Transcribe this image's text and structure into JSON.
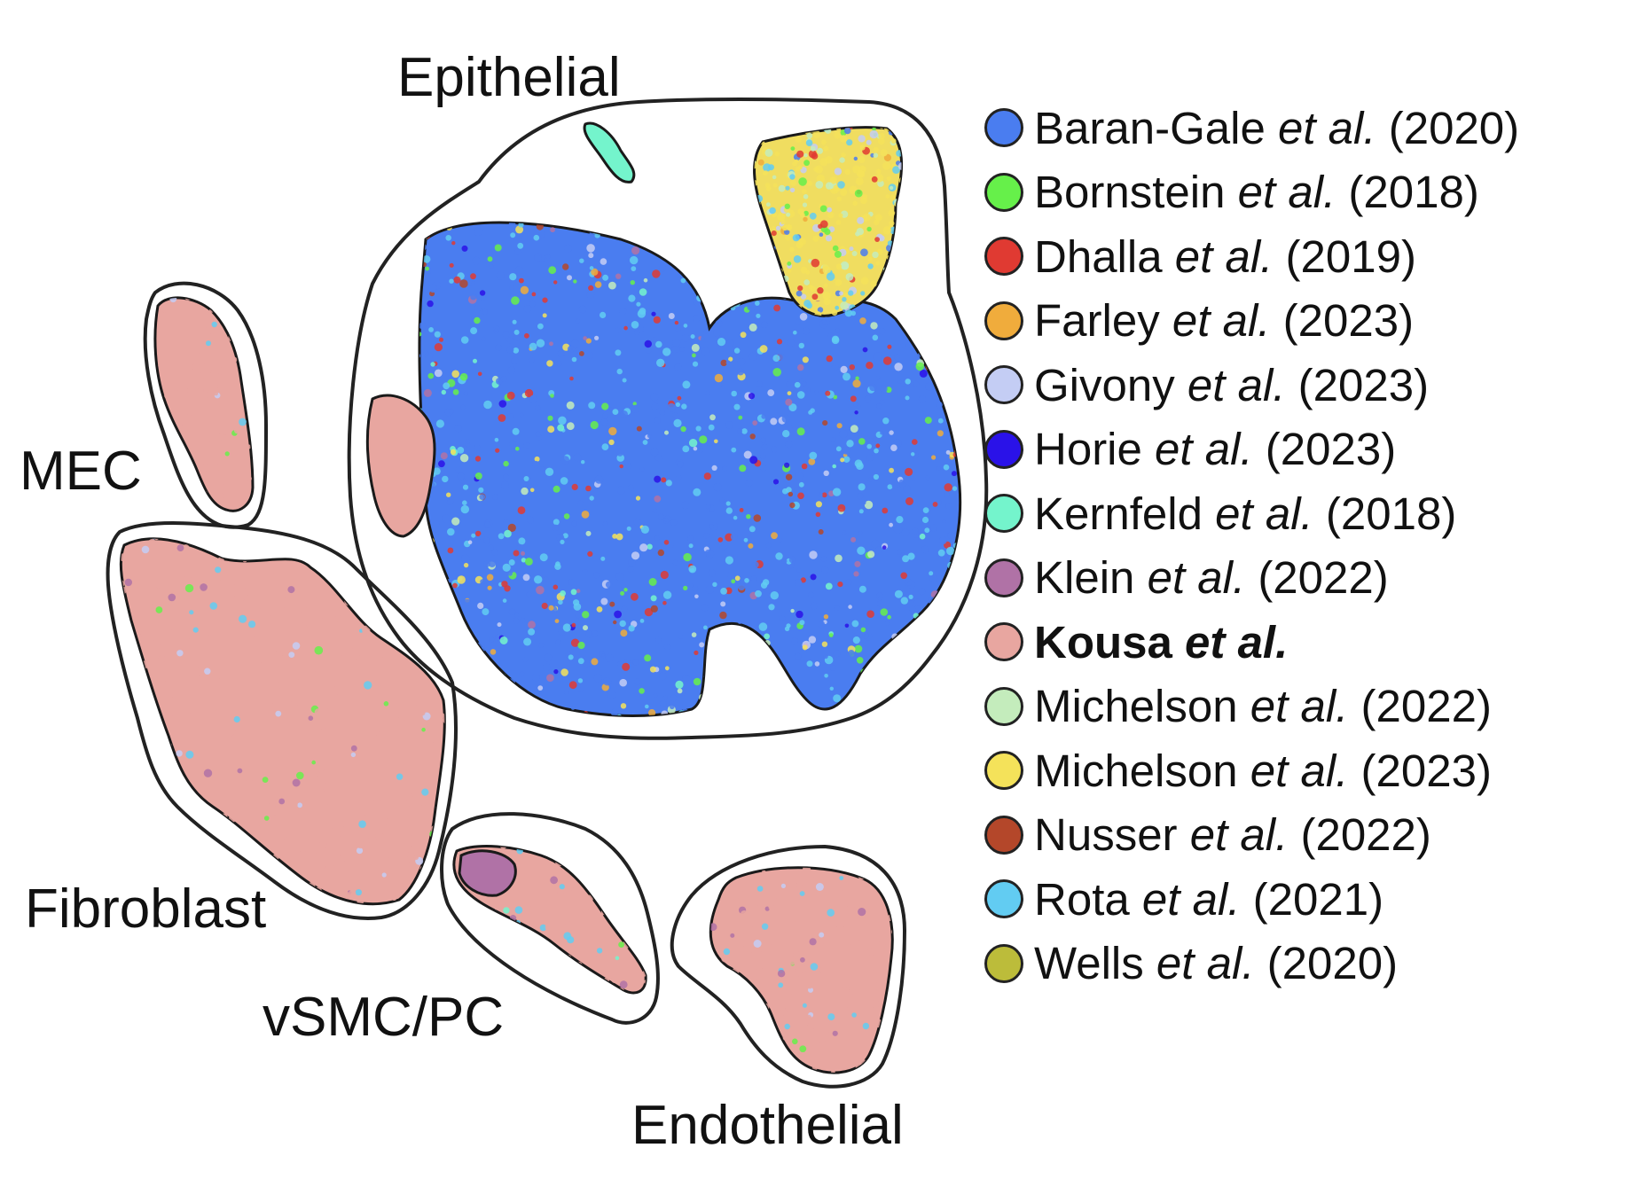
{
  "chart_data": {
    "type": "scatter",
    "title": "",
    "xlabel": "",
    "ylabel": "",
    "grid": false,
    "legend_position": "right",
    "clusters": [
      {
        "name": "Epithelial"
      },
      {
        "name": "MEC"
      },
      {
        "name": "Fibroblast"
      },
      {
        "name": "vSMC/PC"
      },
      {
        "name": "Endothelial"
      }
    ],
    "series": [
      {
        "author": "Baran-Gale",
        "etal": "et al.",
        "year": "(2020)",
        "color": "#4a7df0",
        "bold": false
      },
      {
        "author": "Bornstein",
        "etal": "et al.",
        "year": "(2018)",
        "color": "#66f04a",
        "bold": false
      },
      {
        "author": "Dhalla",
        "etal": "et al.",
        "year": "(2019)",
        "color": "#e03a32",
        "bold": false
      },
      {
        "author": "Farley",
        "etal": "et al.",
        "year": "(2023)",
        "color": "#f0ac3c",
        "bold": false
      },
      {
        "author": "Givony",
        "etal": "et al.",
        "year": "(2023)",
        "color": "#c4cdf4",
        "bold": false
      },
      {
        "author": "Horie",
        "etal": "et al.",
        "year": "(2023)",
        "color": "#2a12e8",
        "bold": false
      },
      {
        "author": "Kernfeld",
        "etal": "et al.",
        "year": "(2018)",
        "color": "#74f4cc",
        "bold": false
      },
      {
        "author": "Klein",
        "etal": "et al.",
        "year": "(2022)",
        "color": "#b072a6",
        "bold": false
      },
      {
        "author": "Kousa",
        "etal": "et al.",
        "year": "",
        "color": "#e8a6a0",
        "bold": true
      },
      {
        "author": "Michelson",
        "etal": "et al.",
        "year": "(2022)",
        "color": "#c4ecbc",
        "bold": false
      },
      {
        "author": "Michelson",
        "etal": "et al.",
        "year": "(2023)",
        "color": "#f4e25a",
        "bold": false
      },
      {
        "author": "Nusser",
        "etal": "et al.",
        "year": "(2022)",
        "color": "#b4472a",
        "bold": false
      },
      {
        "author": "Rota",
        "etal": "et al.",
        "year": "(2021)",
        "color": "#62ccf2",
        "bold": false
      },
      {
        "author": "Wells",
        "etal": "et al.",
        "year": "(2020)",
        "color": "#bcbc3a",
        "bold": false
      }
    ]
  }
}
